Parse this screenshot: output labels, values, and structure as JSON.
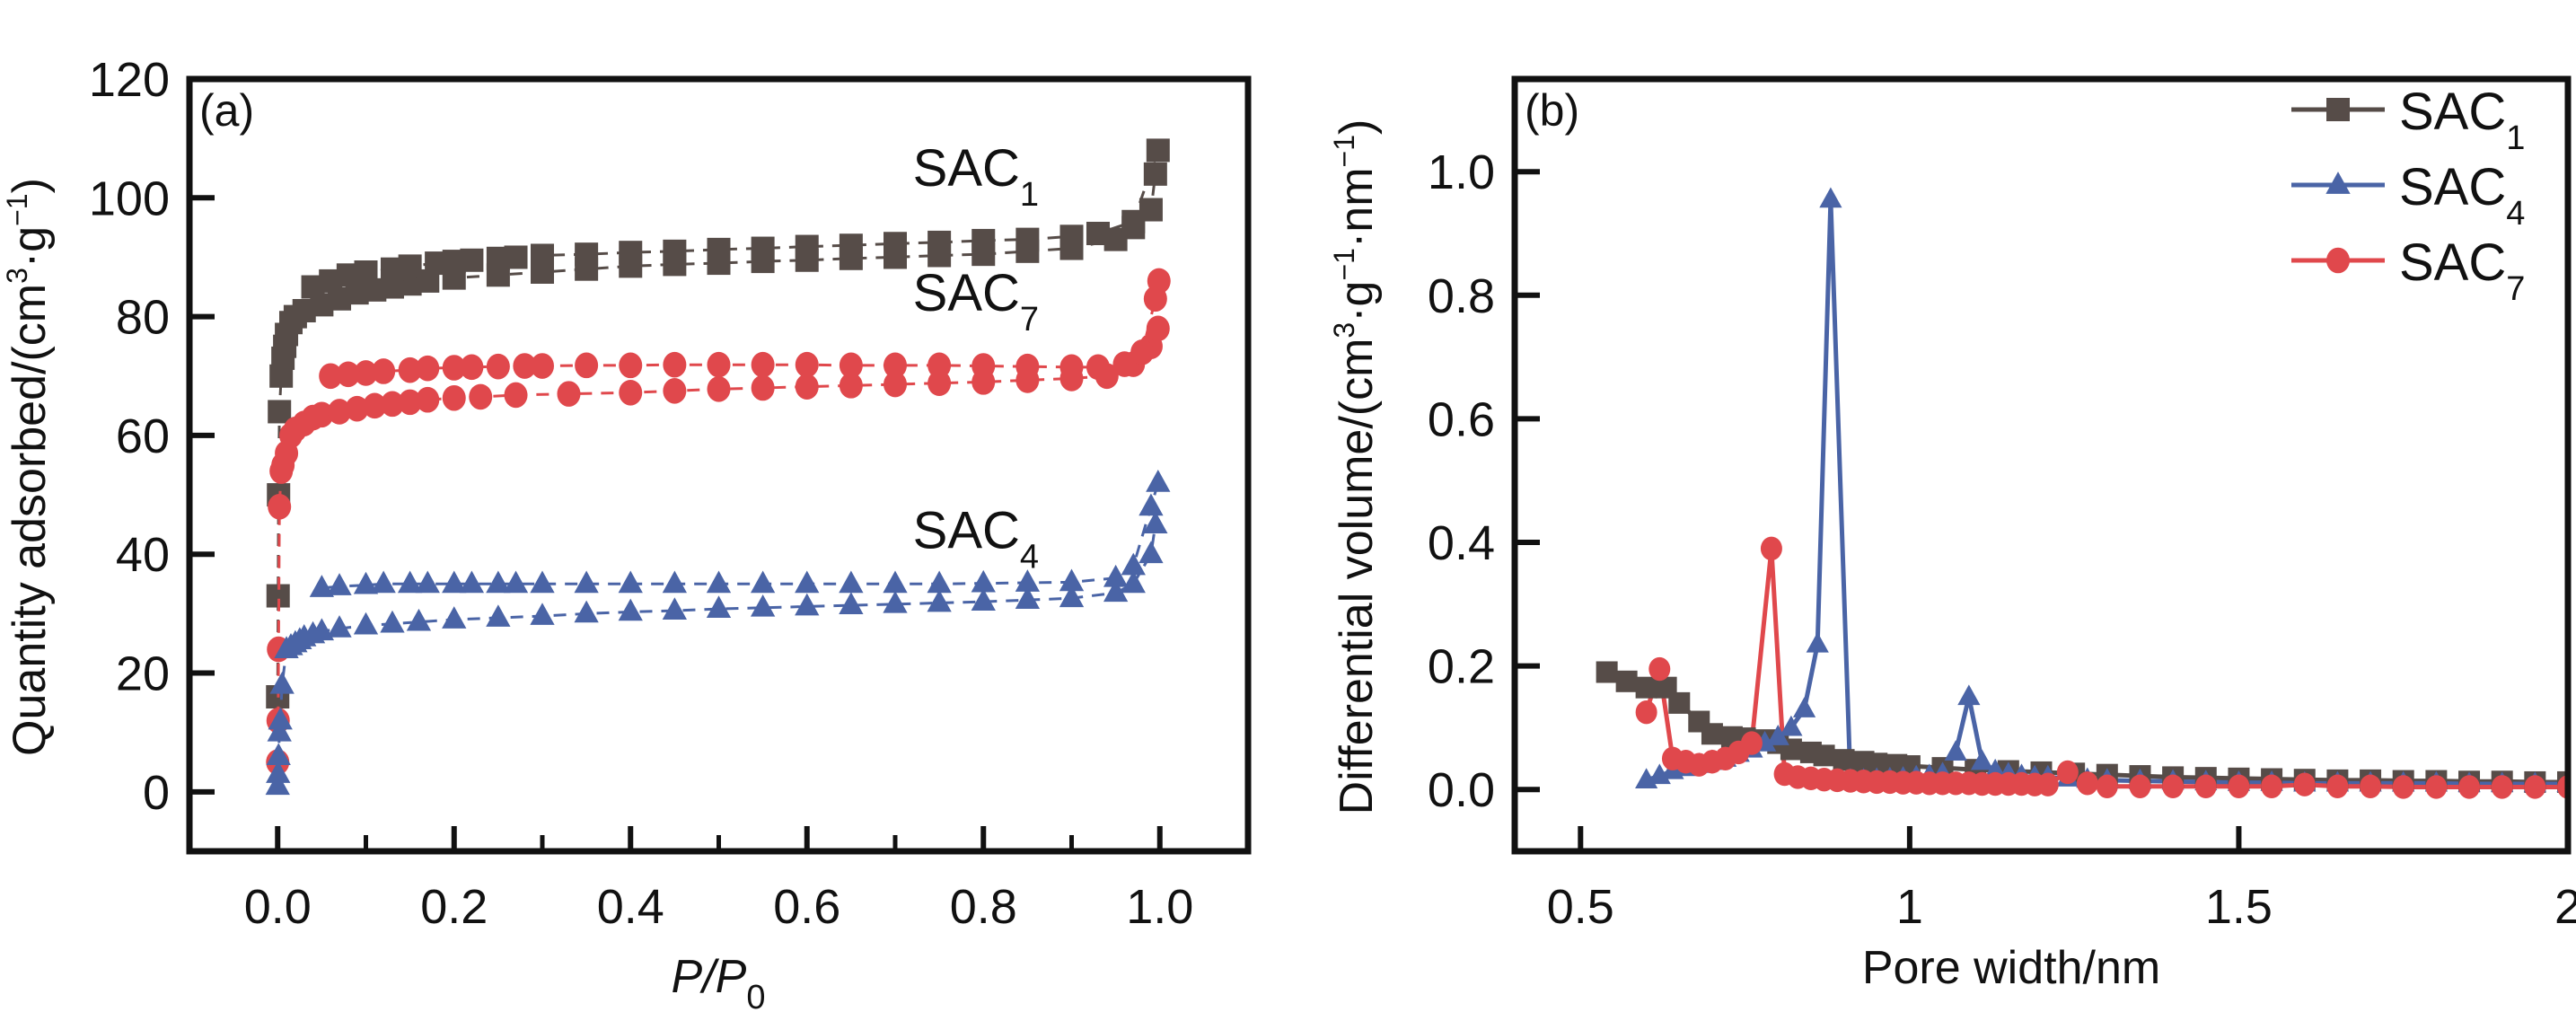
{
  "figure": {
    "panels": [
      "(a)",
      "(b)"
    ]
  },
  "chart_data": [
    {
      "id": "a",
      "type": "scatter",
      "panel_label": "(a)",
      "title": "",
      "xlabel": "P/P0",
      "xlabel_parts": {
        "main": "P/P",
        "sub": "0"
      },
      "ylabel": "Quantity adsorbed/(cm³·g⁻¹)",
      "ylabel_parts": {
        "pre": "Quantity adsorbed/(cm",
        "sup1": "3",
        "mid": "·g",
        "sup2": "−1",
        "post": ")"
      },
      "xlim": [
        -0.1,
        1.1
      ],
      "ylim": [
        -10,
        120
      ],
      "xticks": [
        0.0,
        0.2,
        0.4,
        0.6,
        0.8,
        1.0
      ],
      "xtick_labels": [
        "0.0",
        "0.2",
        "0.4",
        "0.6",
        "0.8",
        "1.0"
      ],
      "xminor_ticks": [
        0.1,
        0.3,
        0.5,
        0.7,
        0.9
      ],
      "yticks": [
        0,
        20,
        40,
        60,
        80,
        100,
        120
      ],
      "ytick_labels": [
        "0",
        "20",
        "40",
        "60",
        "80",
        "100",
        "120"
      ],
      "grid": false,
      "legend": null,
      "annotations": [
        {
          "text": "SAC",
          "sub": "1",
          "x": 0.72,
          "y": 102
        },
        {
          "text": "SAC",
          "sub": "7",
          "x": 0.72,
          "y": 81
        },
        {
          "text": "SAC",
          "sub": "4",
          "x": 0.72,
          "y": 41
        }
      ],
      "series": [
        {
          "name": "SAC1",
          "marker": "square",
          "color": "#564c48",
          "line": "dashed",
          "adsorption": {
            "x": [
              0.0,
              0.0005,
              0.001,
              0.002,
              0.004,
              0.006,
              0.008,
              0.01,
              0.015,
              0.02,
              0.03,
              0.05,
              0.07,
              0.09,
              0.11,
              0.13,
              0.15,
              0.17,
              0.2,
              0.25,
              0.3,
              0.35,
              0.4,
              0.45,
              0.5,
              0.55,
              0.6,
              0.65,
              0.7,
              0.75,
              0.8,
              0.85,
              0.9,
              0.95,
              0.97,
              0.99,
              0.995
            ],
            "y": [
              16,
              33,
              50,
              64,
              70,
              73,
              75,
              77,
              79,
              80,
              81,
              82,
              83,
              84,
              84.5,
              85,
              85.5,
              86,
              86.5,
              87,
              87.5,
              88,
              88.5,
              88.8,
              89,
              89.3,
              89.5,
              89.8,
              90,
              90.3,
              90.5,
              91,
              91.5,
              93,
              95,
              98,
              104
            ]
          },
          "desorption": {
            "x": [
              0.998,
              0.97,
              0.93,
              0.9,
              0.85,
              0.8,
              0.75,
              0.7,
              0.65,
              0.6,
              0.55,
              0.5,
              0.45,
              0.4,
              0.35,
              0.3,
              0.27,
              0.25,
              0.22,
              0.2,
              0.18,
              0.15,
              0.13,
              0.1,
              0.08,
              0.06,
              0.04
            ],
            "y": [
              108,
              96,
              94,
              93.5,
              93,
              92.8,
              92.5,
              92.3,
              92,
              91.8,
              91.5,
              91.3,
              91,
              90.8,
              90.5,
              90.3,
              90,
              89.8,
              89.5,
              89.3,
              89,
              88.5,
              88,
              87.5,
              87,
              86,
              85
            ]
          }
        },
        {
          "name": "SAC7",
          "marker": "circle",
          "color": "#e0484c",
          "line": "dashed",
          "adsorption": {
            "x": [
              0.0,
              0.0005,
              0.001,
              0.002,
              0.004,
              0.006,
              0.01,
              0.015,
              0.02,
              0.03,
              0.04,
              0.05,
              0.07,
              0.09,
              0.11,
              0.13,
              0.15,
              0.17,
              0.2,
              0.23,
              0.27,
              0.33,
              0.4,
              0.45,
              0.5,
              0.55,
              0.6,
              0.65,
              0.7,
              0.75,
              0.8,
              0.85,
              0.9,
              0.94,
              0.97,
              0.99,
              0.998
            ],
            "y": [
              5,
              12,
              24,
              48,
              54,
              55,
              57,
              60,
              61,
              62,
              63,
              63.5,
              64,
              64.5,
              65,
              65.3,
              65.6,
              66,
              66.3,
              66.5,
              66.8,
              67,
              67.2,
              67.5,
              67.8,
              68,
              68.2,
              68.4,
              68.6,
              68.8,
              69,
              69.3,
              69.6,
              70,
              72,
              75,
              78
            ]
          },
          "desorption": {
            "x": [
              0.999,
              0.995,
              0.98,
              0.96,
              0.93,
              0.9,
              0.85,
              0.8,
              0.75,
              0.7,
              0.65,
              0.6,
              0.55,
              0.5,
              0.45,
              0.4,
              0.35,
              0.3,
              0.28,
              0.25,
              0.22,
              0.2,
              0.17,
              0.15,
              0.12,
              0.1,
              0.08,
              0.06
            ],
            "y": [
              86,
              83,
              74,
              72,
              71.5,
              71.5,
              71.6,
              71.7,
              71.8,
              71.8,
              71.8,
              71.9,
              71.9,
              71.9,
              71.9,
              71.8,
              71.8,
              71.7,
              71.7,
              71.6,
              71.5,
              71.4,
              71.3,
              71,
              70.8,
              70.5,
              70.3,
              70
            ]
          }
        },
        {
          "name": "SAC4",
          "marker": "triangle",
          "color": "#4a64a6",
          "line": "dashed",
          "adsorption": {
            "x": [
              0.0,
              0.0005,
              0.001,
              0.002,
              0.003,
              0.005,
              0.01,
              0.015,
              0.02,
              0.025,
              0.03,
              0.04,
              0.05,
              0.07,
              0.1,
              0.13,
              0.16,
              0.2,
              0.25,
              0.3,
              0.35,
              0.4,
              0.45,
              0.5,
              0.55,
              0.6,
              0.65,
              0.7,
              0.75,
              0.8,
              0.85,
              0.9,
              0.95,
              0.97,
              0.99,
              0.995
            ],
            "y": [
              1,
              3,
              6,
              10,
              12,
              18,
              24,
              24.5,
              25,
              25.5,
              26,
              26.5,
              27,
              27.5,
              28,
              28.3,
              28.6,
              29,
              29.3,
              29.6,
              30,
              30.3,
              30.5,
              30.8,
              31,
              31.2,
              31.4,
              31.6,
              31.8,
              32,
              32.3,
              32.6,
              33.5,
              35,
              40,
              45
            ]
          },
          "desorption": {
            "x": [
              0.998,
              0.99,
              0.97,
              0.95,
              0.9,
              0.85,
              0.8,
              0.75,
              0.7,
              0.65,
              0.6,
              0.55,
              0.5,
              0.45,
              0.4,
              0.35,
              0.3,
              0.27,
              0.25,
              0.22,
              0.2,
              0.17,
              0.15,
              0.12,
              0.1,
              0.07,
              0.05
            ],
            "y": [
              52,
              48,
              38,
              36,
              35.3,
              35.2,
              35.1,
              35,
              35,
              35,
              35,
              35,
              35,
              35,
              35,
              35,
              35,
              35,
              35,
              35,
              35,
              35,
              35,
              35,
              34.8,
              34.6,
              34.3
            ]
          }
        }
      ]
    },
    {
      "id": "b",
      "type": "line",
      "panel_label": "(b)",
      "title": "",
      "xlabel": "Pore width/nm",
      "ylabel": "Differential volume/(cm³·g⁻¹·nm⁻¹)",
      "ylabel_parts": {
        "pre": "Differential volume/(cm",
        "sup1": "3",
        "mid": "·g",
        "sup2": "−1",
        "mid2": "·nm",
        "sup3": "−1",
        "post": ")"
      },
      "xlim": [
        0.4,
        2.0
      ],
      "ylim": [
        -0.1,
        1.15
      ],
      "xticks": [
        0.5,
        1.0,
        1.5,
        2.0
      ],
      "xtick_labels": [
        "0.5",
        "1",
        "1.5",
        "2"
      ],
      "yticks": [
        0.0,
        0.2,
        0.4,
        0.6,
        0.8,
        1.0
      ],
      "ytick_labels": [
        "0.0",
        "0.2",
        "0.4",
        "0.6",
        "0.8",
        "1.0"
      ],
      "grid": false,
      "legend": {
        "position": "top-right",
        "entries": [
          {
            "label": "SAC",
            "sub": "1",
            "marker": "square",
            "color": "#564c48"
          },
          {
            "label": "SAC",
            "sub": "4",
            "marker": "triangle",
            "color": "#4a64a6"
          },
          {
            "label": "SAC",
            "sub": "7",
            "marker": "circle",
            "color": "#e0484c"
          }
        ]
      },
      "series": [
        {
          "name": "SAC1",
          "marker": "square",
          "color": "#564c48",
          "x": [
            0.54,
            0.57,
            0.6,
            0.63,
            0.65,
            0.68,
            0.7,
            0.73,
            0.75,
            0.78,
            0.8,
            0.82,
            0.85,
            0.87,
            0.9,
            0.93,
            0.95,
            0.98,
            1.0,
            1.05,
            1.1,
            1.15,
            1.2,
            1.25,
            1.3,
            1.35,
            1.4,
            1.45,
            1.5,
            1.55,
            1.6,
            1.65,
            1.7,
            1.75,
            1.8,
            1.85,
            1.9,
            1.95,
            2.0
          ],
          "y": [
            0.19,
            0.175,
            0.165,
            0.165,
            0.14,
            0.11,
            0.09,
            0.085,
            0.083,
            0.08,
            0.075,
            0.065,
            0.06,
            0.055,
            0.048,
            0.045,
            0.042,
            0.04,
            0.038,
            0.035,
            0.032,
            0.03,
            0.028,
            0.026,
            0.024,
            0.022,
            0.02,
            0.019,
            0.018,
            0.017,
            0.016,
            0.015,
            0.015,
            0.014,
            0.014,
            0.013,
            0.013,
            0.012,
            0.012
          ]
        },
        {
          "name": "SAC4",
          "marker": "triangle",
          "color": "#4a64a6",
          "x": [
            0.6,
            0.62,
            0.64,
            0.66,
            0.68,
            0.7,
            0.72,
            0.74,
            0.76,
            0.78,
            0.8,
            0.82,
            0.84,
            0.86,
            0.88,
            0.91,
            0.93,
            0.95,
            0.97,
            0.99,
            1.01,
            1.03,
            1.05,
            1.07,
            1.09,
            1.11,
            1.13,
            1.15,
            1.17,
            1.19,
            1.21,
            1.24,
            1.27,
            1.3,
            1.35,
            1.4,
            1.45,
            1.5,
            1.55,
            1.6,
            1.65,
            1.7,
            1.75,
            1.8,
            1.85,
            1.9,
            1.95,
            2.0
          ],
          "y": [
            0.015,
            0.022,
            0.03,
            0.035,
            0.04,
            0.045,
            0.05,
            0.058,
            0.065,
            0.075,
            0.085,
            0.1,
            0.13,
            0.235,
            0.955,
            0.015,
            0.015,
            0.016,
            0.017,
            0.018,
            0.02,
            0.022,
            0.025,
            0.06,
            0.15,
            0.045,
            0.03,
            0.025,
            0.022,
            0.02,
            0.02,
            0.018,
            0.016,
            0.015,
            0.014,
            0.013,
            0.012,
            0.011,
            0.011,
            0.01,
            0.01,
            0.01,
            0.01,
            0.01,
            0.009,
            0.009,
            0.009,
            0.009
          ]
        },
        {
          "name": "SAC7",
          "marker": "circle",
          "color": "#e0484c",
          "x": [
            0.6,
            0.62,
            0.64,
            0.66,
            0.68,
            0.7,
            0.72,
            0.74,
            0.76,
            0.79,
            0.81,
            0.83,
            0.85,
            0.87,
            0.89,
            0.91,
            0.93,
            0.95,
            0.97,
            0.99,
            1.01,
            1.03,
            1.05,
            1.07,
            1.09,
            1.11,
            1.13,
            1.15,
            1.17,
            1.19,
            1.21,
            1.24,
            1.27,
            1.3,
            1.35,
            1.4,
            1.45,
            1.5,
            1.55,
            1.6,
            1.65,
            1.7,
            1.75,
            1.8,
            1.85,
            1.9,
            1.95,
            2.0
          ],
          "y": [
            0.125,
            0.195,
            0.05,
            0.045,
            0.04,
            0.045,
            0.05,
            0.06,
            0.075,
            0.39,
            0.025,
            0.02,
            0.018,
            0.016,
            0.015,
            0.014,
            0.013,
            0.012,
            0.012,
            0.011,
            0.011,
            0.01,
            0.01,
            0.01,
            0.01,
            0.009,
            0.009,
            0.009,
            0.009,
            0.008,
            0.008,
            0.028,
            0.01,
            0.005,
            0.005,
            0.005,
            0.005,
            0.005,
            0.005,
            0.008,
            0.005,
            0.005,
            0.004,
            0.004,
            0.004,
            0.004,
            0.004,
            0.004
          ]
        }
      ]
    }
  ]
}
